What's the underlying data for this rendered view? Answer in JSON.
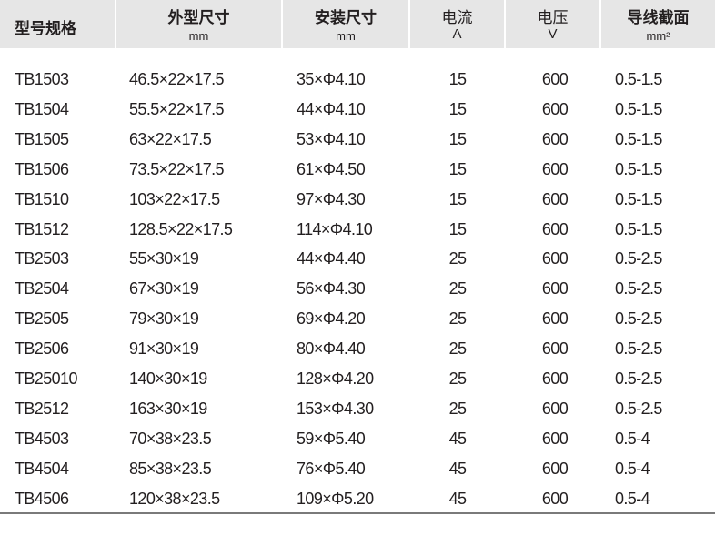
{
  "header": {
    "model": "型号规格",
    "outer_size": "外型尺寸",
    "outer_size_unit": "mm",
    "mount_size": "安装尺寸",
    "mount_size_unit": "mm",
    "current": "电流",
    "current_unit": "A",
    "voltage": "电压",
    "voltage_unit": "V",
    "wire_section": "导线截面",
    "wire_section_unit": "mm²"
  },
  "rows": [
    [
      "TB1503",
      "46.5×22×17.5",
      "35×Φ4.10",
      "15",
      "600",
      "0.5-1.5"
    ],
    [
      "TB1504",
      "55.5×22×17.5",
      "44×Φ4.10",
      "15",
      "600",
      "0.5-1.5"
    ],
    [
      "TB1505",
      "63×22×17.5",
      "53×Φ4.10",
      "15",
      "600",
      "0.5-1.5"
    ],
    [
      "TB1506",
      "73.5×22×17.5",
      "61×Φ4.50",
      "15",
      "600",
      "0.5-1.5"
    ],
    [
      "TB1510",
      "103×22×17.5",
      "97×Φ4.30",
      "15",
      "600",
      "0.5-1.5"
    ],
    [
      "TB1512",
      "128.5×22×17.5",
      "114×Φ4.10",
      "15",
      "600",
      "0.5-1.5"
    ],
    [
      "TB2503",
      "55×30×19",
      "44×Φ4.40",
      "25",
      "600",
      "0.5-2.5"
    ],
    [
      "TB2504",
      "67×30×19",
      "56×Φ4.30",
      "25",
      "600",
      "0.5-2.5"
    ],
    [
      "TB2505",
      "79×30×19",
      "69×Φ4.20",
      "25",
      "600",
      "0.5-2.5"
    ],
    [
      "TB2506",
      "91×30×19",
      "80×Φ4.40",
      "25",
      "600",
      "0.5-2.5"
    ],
    [
      "TB25010",
      "140×30×19",
      "128×Φ4.20",
      "25",
      "600",
      "0.5-2.5"
    ],
    [
      "TB2512",
      "163×30×19",
      "153×Φ4.30",
      "25",
      "600",
      "0.5-2.5"
    ],
    [
      "TB4503",
      "70×38×23.5",
      "59×Φ5.40",
      "45",
      "600",
      "0.5-4"
    ],
    [
      "TB4504",
      "85×38×23.5",
      "76×Φ5.40",
      "45",
      "600",
      "0.5-4"
    ],
    [
      "TB4506",
      "120×38×23.5",
      "109×Φ5.20",
      "45",
      "600",
      "0.5-4"
    ]
  ]
}
